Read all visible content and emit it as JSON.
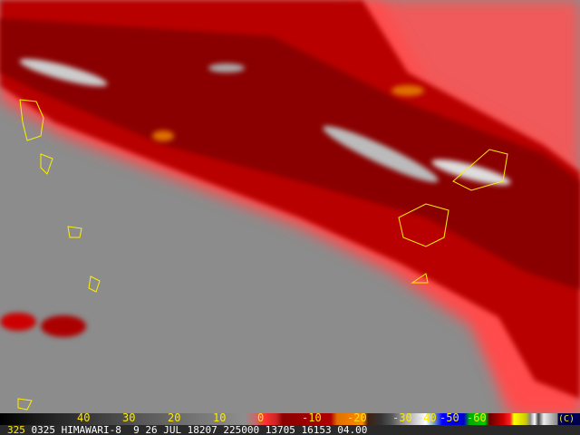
{
  "colorbar": {
    "ticks": [
      "40",
      "30",
      "20",
      "10",
      "0",
      "-10",
      "-20",
      "-30",
      "-40",
      "-50",
      "-60"
    ],
    "unit": "(C)"
  },
  "infobar": {
    "band": "325",
    "text": "0325 HIMAWARI-8  9 26 JUL 18207 225000 13705 16153 04.00"
  },
  "colors": {
    "cloud_red": "#c00000",
    "clear_gray": "#8a8a8a",
    "outline": "#ffee00",
    "tick_text": "#ffeb00"
  }
}
